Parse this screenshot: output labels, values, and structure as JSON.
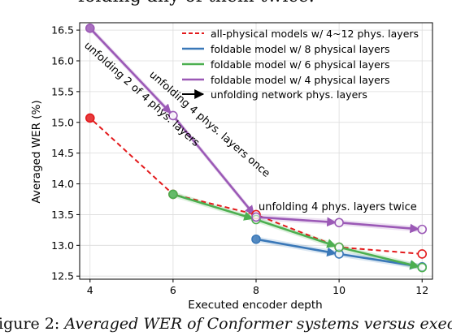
{
  "caption_top": "folding any of them twice.",
  "caption_bottom": {
    "label": "igure 2:",
    "text": "Averaged WER of Conformer systems versus exec"
  },
  "chart_data": {
    "type": "line",
    "title": "",
    "xlabel": "Executed encoder depth",
    "ylabel": "Averaged WER (%)",
    "xlim": [
      3.75,
      12.25
    ],
    "ylim": [
      12.45,
      16.62
    ],
    "xticks": [
      4,
      6,
      8,
      10,
      12
    ],
    "yticks": [
      12.5,
      13.0,
      13.5,
      14.0,
      14.5,
      15.0,
      15.5,
      16.0,
      16.5
    ],
    "grid": true,
    "legend_position": "top-right",
    "series": [
      {
        "name": "all-physical models w/ 4~12 phys. layers",
        "color": "#e31a1c",
        "dash": true,
        "x": [
          4,
          6,
          8,
          10,
          12
        ],
        "y": [
          15.07,
          13.83,
          13.5,
          12.97,
          12.86
        ]
      },
      {
        "name": "foldable model w/ 8 physical layers",
        "color": "#3a78b8",
        "dash": false,
        "x": [
          8,
          10,
          12
        ],
        "y": [
          13.1,
          12.86,
          12.65
        ]
      },
      {
        "name": "foldable model w/ 6 physical layers",
        "color": "#4caf50",
        "dash": false,
        "x": [
          6,
          8,
          10,
          12
        ],
        "y": [
          13.83,
          13.42,
          12.97,
          12.64
        ]
      },
      {
        "name": "foldable model w/ 4 physical layers",
        "color": "#9b59b6",
        "dash": false,
        "x": [
          4,
          6,
          8,
          10,
          12
        ],
        "y": [
          16.53,
          15.11,
          13.46,
          13.37,
          13.26
        ]
      }
    ],
    "legend_arrow": {
      "name": "unfolding network phys. layers",
      "color": "#000000"
    },
    "annotations": [
      {
        "text": "unfolding 2 of 4 phys. layers",
        "color": "#000000"
      },
      {
        "text": "unfolding 4 phys. layers once",
        "color": "#000000"
      },
      {
        "text": "unfolding 4 phys. layers twice",
        "color": "#000000"
      }
    ]
  }
}
